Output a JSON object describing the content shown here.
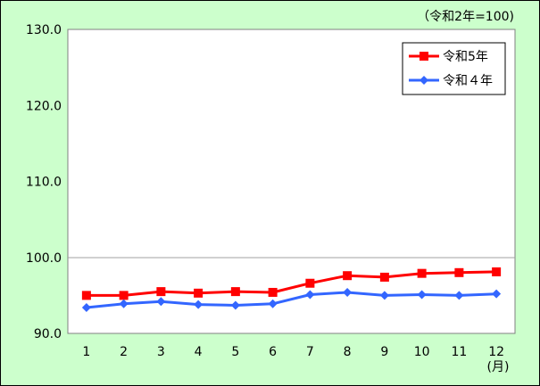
{
  "chart_data": {
    "type": "line",
    "unit_note": "（令和2年=100)",
    "month_unit": "(月)",
    "x": [
      "1",
      "2",
      "3",
      "4",
      "5",
      "6",
      "7",
      "8",
      "9",
      "10",
      "11",
      "12"
    ],
    "ylim": [
      90.0,
      130.0
    ],
    "yticks": [
      "90.0",
      "100.0",
      "110.0",
      "120.0",
      "130.0"
    ],
    "grid": "horizontal line at 100.0",
    "legend_position": "top-right",
    "series": [
      {
        "name": "令和5年",
        "color": "#ff0000",
        "marker": "square",
        "values": [
          95.0,
          95.0,
          95.5,
          95.3,
          95.5,
          95.4,
          96.6,
          97.6,
          97.4,
          97.9,
          98.0,
          98.1
        ]
      },
      {
        "name": "令和４年",
        "color": "#3366ff",
        "marker": "diamond",
        "values": [
          93.4,
          93.9,
          94.2,
          93.8,
          93.7,
          93.9,
          95.1,
          95.4,
          95.0,
          95.1,
          95.0,
          95.2
        ]
      }
    ]
  }
}
